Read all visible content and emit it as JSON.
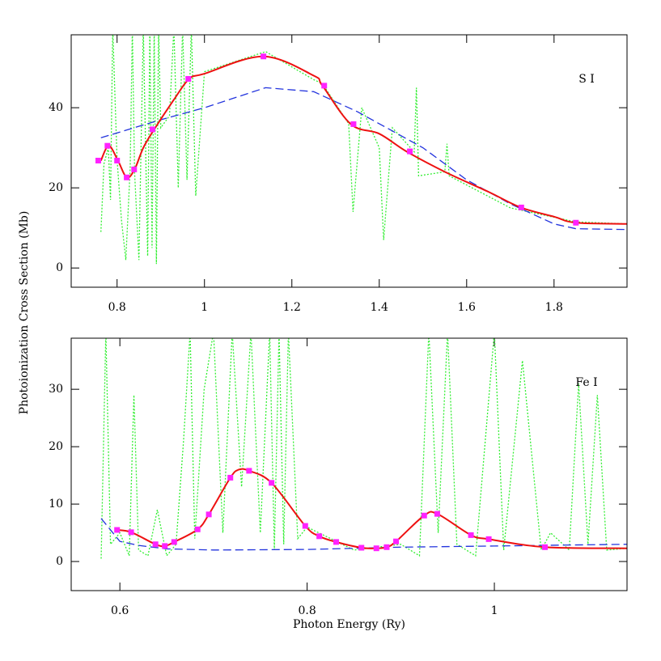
{
  "chart_data": [
    {
      "type": "line",
      "annotation": "S I",
      "ylabel": "Photoionization Cross Section (Mb)",
      "xlim": [
        0.695,
        1.967
      ],
      "ylim": [
        -4.8,
        58.2
      ],
      "xticks": [
        0.8,
        1,
        1.2,
        1.4,
        1.6,
        1.8
      ],
      "yticks": [
        0,
        20,
        40
      ],
      "series": [
        {
          "color": "#33ee33",
          "style": "dotted",
          "x": [
            0.763,
            0.77,
            0.78,
            0.785,
            0.79,
            0.8,
            0.81,
            0.82,
            0.83,
            0.835,
            0.84,
            0.85,
            0.86,
            0.87,
            0.875,
            0.88,
            0.885,
            0.89,
            0.895,
            0.9,
            0.92,
            0.93,
            0.94,
            0.95,
            0.96,
            0.97,
            0.98,
            1.0,
            1.14,
            1.25,
            1.27,
            1.33,
            1.34,
            1.36,
            1.4,
            1.41,
            1.43,
            1.48,
            1.485,
            1.49,
            1.55,
            1.555,
            1.56,
            1.7,
            1.85,
            1.967
          ],
          "values": [
            9,
            26,
            30,
            17,
            60,
            27,
            12,
            2,
            25,
            60,
            24,
            2,
            60,
            3,
            60,
            5,
            60,
            1,
            60,
            35,
            38,
            60,
            20,
            60,
            22,
            60,
            18,
            49,
            54,
            47,
            46,
            36,
            14,
            40,
            30,
            7,
            35,
            29,
            45,
            23,
            24,
            31,
            23,
            15,
            11.5,
            11
          ]
        },
        {
          "color": "#2233dd",
          "style": "dashed",
          "x": [
            0.763,
            0.9,
            1.0,
            1.14,
            1.25,
            1.35,
            1.5,
            1.6,
            1.7,
            1.8,
            1.85,
            1.967
          ],
          "values": [
            32.5,
            37,
            40,
            45,
            44,
            39,
            30,
            22,
            16,
            11,
            9.8,
            9.6
          ]
        },
        {
          "color": "#ee1111",
          "style": "solid",
          "smooth": true,
          "x": [
            0.763,
            0.781,
            0.802,
            0.822,
            0.84,
            0.86,
            0.885,
            0.93,
            0.965,
            1.0,
            1.135,
            1.25,
            1.27,
            1.335,
            1.4,
            1.462,
            1.55,
            1.65,
            1.724,
            1.8,
            1.85,
            1.967
          ],
          "values": [
            26.8,
            30.5,
            26.8,
            22.6,
            24.6,
            30,
            34.6,
            42,
            47.2,
            48.5,
            52.8,
            48,
            45.5,
            35.9,
            33.5,
            29.1,
            24,
            19,
            15.1,
            12.8,
            11.3,
            11
          ]
        },
        {
          "color": "#ff22ff",
          "style": "markers",
          "x": [
            0.757,
            0.778,
            0.8,
            0.822,
            0.839,
            0.881,
            0.963,
            1.135,
            1.274,
            1.341,
            1.47,
            1.725,
            1.85
          ],
          "values": [
            26.8,
            30.5,
            26.8,
            22.6,
            24.6,
            34.6,
            47.2,
            52.8,
            45.5,
            35.9,
            29.1,
            15.1,
            11.3
          ]
        }
      ]
    },
    {
      "type": "line",
      "annotation": "Fe I",
      "xlabel": "Photon Energy (Ry)",
      "xlim": [
        0.548,
        1.1417
      ],
      "ylim": [
        -5.07,
        38.9
      ],
      "xticks": [
        0.6,
        0.8,
        1
      ],
      "yticks": [
        0,
        10,
        20,
        30
      ],
      "series": [
        {
          "color": "#33ee33",
          "style": "dotted",
          "x": [
            0.58,
            0.585,
            0.59,
            0.6,
            0.61,
            0.615,
            0.62,
            0.63,
            0.64,
            0.65,
            0.66,
            0.668,
            0.675,
            0.68,
            0.69,
            0.7,
            0.71,
            0.72,
            0.73,
            0.74,
            0.75,
            0.76,
            0.765,
            0.77,
            0.775,
            0.78,
            0.79,
            0.8,
            0.85,
            0.9,
            0.92,
            0.93,
            0.94,
            0.95,
            0.96,
            0.98,
            1.0,
            1.01,
            1.03,
            1.05,
            1.06,
            1.08,
            1.09,
            1.1,
            1.11,
            1.12,
            1.1417
          ],
          "values": [
            0.5,
            40,
            3,
            5,
            1,
            29,
            2,
            1,
            9,
            1,
            3,
            21,
            40,
            4,
            30,
            40,
            5,
            40,
            13,
            40,
            5,
            40,
            2,
            40,
            3,
            40,
            4,
            6,
            2,
            3,
            1,
            40,
            5,
            40,
            3,
            1,
            40,
            2,
            35,
            2,
            5,
            2,
            31,
            3,
            29,
            2,
            2.3
          ]
        },
        {
          "color": "#2233dd",
          "style": "dashed",
          "x": [
            0.58,
            0.6,
            0.62,
            0.65,
            0.7,
            0.8,
            0.9,
            1.0,
            1.1417
          ],
          "values": [
            7.5,
            3.5,
            2.8,
            2.2,
            2.0,
            2.1,
            2.5,
            2.7,
            3.0
          ]
        },
        {
          "color": "#ee1111",
          "style": "solid",
          "smooth": true,
          "x": [
            0.597,
            0.612,
            0.638,
            0.648,
            0.658,
            0.683,
            0.695,
            0.718,
            0.727,
            0.738,
            0.762,
            0.798,
            0.813,
            0.831,
            0.858,
            0.874,
            0.885,
            0.895,
            0.925,
            0.939,
            0.975,
            0.994,
            1.054,
            1.1417
          ],
          "values": [
            5.5,
            5.1,
            3.0,
            2.7,
            3.4,
            5.6,
            8.2,
            14.6,
            16.0,
            15.8,
            13.7,
            6.2,
            4.4,
            3.4,
            2.4,
            2.3,
            2.5,
            3.5,
            8.0,
            8.3,
            4.6,
            3.9,
            2.5,
            2.3
          ]
        },
        {
          "color": "#ff22ff",
          "style": "markers",
          "x": [
            0.597,
            0.612,
            0.638,
            0.648,
            0.658,
            0.683,
            0.695,
            0.718,
            0.738,
            0.762,
            0.798,
            0.813,
            0.831,
            0.858,
            0.874,
            0.885,
            0.895,
            0.925,
            0.939,
            0.975,
            0.994,
            1.054
          ],
          "values": [
            5.5,
            5.1,
            3.0,
            2.7,
            3.4,
            5.6,
            8.2,
            14.6,
            15.8,
            13.7,
            6.2,
            4.4,
            3.4,
            2.4,
            2.3,
            2.5,
            3.5,
            8.0,
            8.3,
            4.6,
            3.9,
            2.5
          ]
        }
      ]
    }
  ]
}
